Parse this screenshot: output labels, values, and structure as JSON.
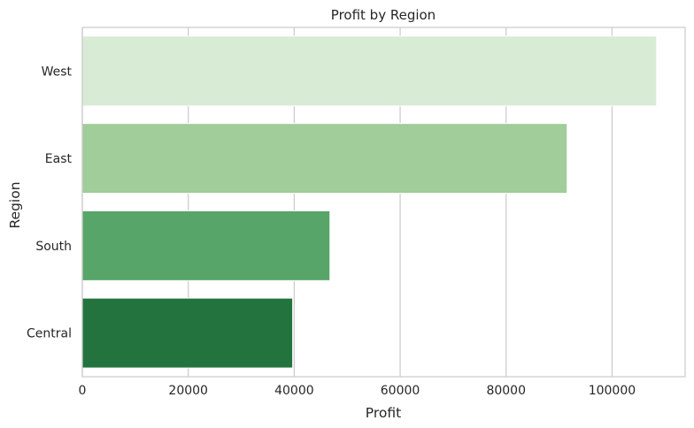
{
  "chart_data": {
    "type": "bar",
    "orientation": "horizontal",
    "title": "Profit by Region",
    "xlabel": "Profit",
    "ylabel": "Region",
    "categories": [
      "West",
      "East",
      "South",
      "Central"
    ],
    "values": [
      108418,
      91523,
      46749,
      39706
    ],
    "colors": [
      "#d8ebd4",
      "#a0cd9a",
      "#58a56a",
      "#23733f"
    ],
    "xlim": [
      0,
      113800
    ],
    "xticks": [
      0,
      20000,
      40000,
      60000,
      80000,
      100000
    ],
    "xtick_labels": [
      "0",
      "20000",
      "40000",
      "60000",
      "80000",
      "100000"
    ],
    "grid": "vertical",
    "style": {
      "grid_color": "#cccccc",
      "spine_color": "#cccccc",
      "background": "#ffffff"
    }
  }
}
